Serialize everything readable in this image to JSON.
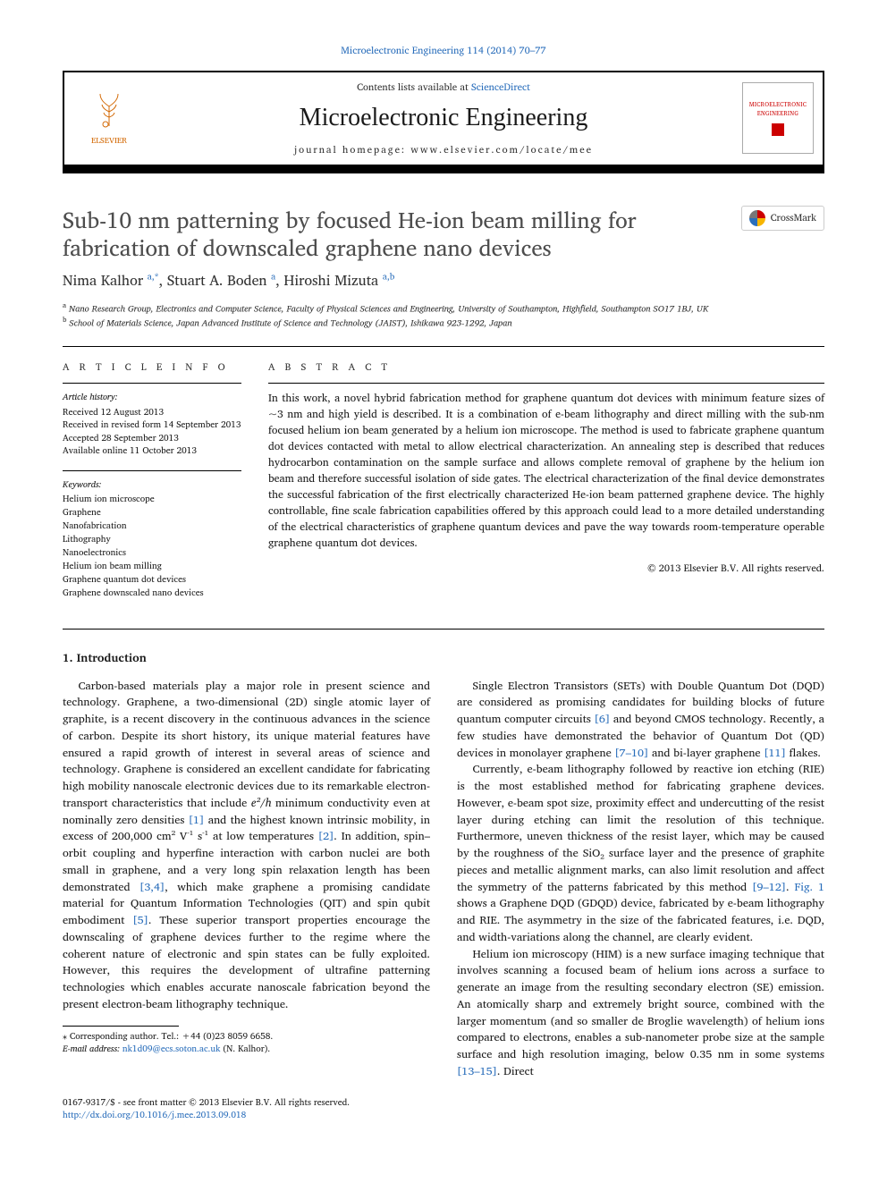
{
  "top_link": {
    "text": "Microelectronic Engineering 114 (2014) 70–77"
  },
  "header": {
    "contents_prefix": "Contents lists available at ",
    "contents_link": "ScienceDirect",
    "journal_name": "Microelectronic Engineering",
    "journal_home_prefix": "journal homepage: ",
    "journal_home_url": "www.elsevier.com/locate/mee",
    "publisher_name": "ELSEVIER",
    "cover_label_1": "MICROELECTRONIC",
    "cover_label_2": "ENGINEERING"
  },
  "crossmark": {
    "label": "CrossMark"
  },
  "article": {
    "title": "Sub-10 nm patterning by focused He-ion beam milling for fabrication of downscaled graphene nano devices",
    "authors_html": "Nima Kalhor <span class='sup'>a,*</span>, Stuart A. Boden <span class='sup'>a</span>, Hiroshi Mizuta <span class='sup'>a,b</span>",
    "affiliations": [
      {
        "sup": "a",
        "text": "Nano Research Group, Electronics and Computer Science, Faculty of Physical Sciences and Engineering, University of Southampton, Highfield, Southampton SO17 1BJ, UK"
      },
      {
        "sup": "b",
        "text": "School of Materials Science, Japan Advanced Institute of Science and Technology (JAIST), Ishikawa 923-1292, Japan"
      }
    ]
  },
  "article_info": {
    "heading": "A R T I C L E   I N F O",
    "history_label": "Article history:",
    "history": [
      "Received 12 August 2013",
      "Received in revised form 14 September 2013",
      "Accepted 28 September 2013",
      "Available online 11 October 2013"
    ],
    "keywords_label": "Keywords:",
    "keywords": [
      "Helium ion microscope",
      "Graphene",
      "Nanofabrication",
      "Lithography",
      "Nanoelectronics",
      "Helium ion beam milling",
      "Graphene quantum dot devices",
      "Graphene downscaled nano devices"
    ]
  },
  "abstract": {
    "heading": "A B S T R A C T",
    "body": "In this work, a novel hybrid fabrication method for graphene quantum dot devices with minimum feature sizes of ~3 nm and high yield is described. It is a combination of e-beam lithography and direct milling with the sub-nm focused helium ion beam generated by a helium ion microscope. The method is used to fabricate graphene quantum dot devices contacted with metal to allow electrical characterization. An annealing step is described that reduces hydrocarbon contamination on the sample surface and allows complete removal of graphene by the helium ion beam and therefore successful isolation of side gates. The electrical characterization of the final device demonstrates the successful fabrication of the first electrically characterized He-ion beam patterned graphene device. The highly controllable, fine scale fabrication capabilities offered by this approach could lead to a more detailed understanding of the electrical characteristics of graphene quantum devices and pave the way towards room-temperature operable graphene quantum dot devices.",
    "copyright": "© 2013 Elsevier B.V. All rights reserved."
  },
  "introduction": {
    "heading": "1. Introduction",
    "p1_pre": "Carbon-based materials play a major role in present science and technology. Graphene, a two-dimensional (2D) single atomic layer of graphite, is a recent discovery in the continuous advances in the science of carbon. Despite its short history, its unique material features have ensured a rapid growth of interest in several areas of science and technology. Graphene is considered an excellent candidate for fabricating high mobility nanoscale electronic devices due to its remarkable electron-transport characteristics that include ",
    "p1_eq": "e²/h",
    "p1_mid1": " minimum conductivity even at nominally zero densities ",
    "p1_ref1": "[1]",
    "p1_mid2": " and the highest known intrinsic mobility, in excess of 200,000 cm² V⁻¹ s⁻¹ at low temperatures ",
    "p1_ref2": "[2]",
    "p1_mid3": ". In addition, spin–orbit coupling and hyperfine interaction with carbon nuclei are both small in graphene, and a very long spin relaxation length has been demonstrated ",
    "p1_ref3": "[3,4]",
    "p1_mid4": ", which make graphene a promising candidate material for Quantum Information Technologies (QIT) and spin qubit embodiment ",
    "p1_ref4": "[5]",
    "p1_post": ". These superior transport properties encourage the downscaling of graphene devices further to the regime where the coherent nature of electronic and spin states can be fully exploited. However, this requires the development of ultrafine patterning technologies which enables accurate nanoscale fabrication beyond the present electron-beam lithography technique.",
    "p2_pre": "Single Electron Transistors (SETs) with Double Quantum Dot (DQD) are considered as promising candidates for building blocks of future quantum computer circuits ",
    "p2_ref1": "[6]",
    "p2_mid1": " and beyond CMOS technology. Recently, a few studies have demonstrated the behavior of Quantum Dot (QD) devices in monolayer graphene ",
    "p2_ref2": "[7–10]",
    "p2_mid2": " and bi-layer graphene ",
    "p2_ref3": "[11]",
    "p2_post": " flakes.",
    "p3_pre": "Currently, e-beam lithography followed by reactive ion etching (RIE) is the most established method for fabricating graphene devices. However, e-beam spot size, proximity effect and undercutting of the resist layer during etching can limit the resolution of this technique. Furthermore, uneven thickness of the resist layer, which may be caused by the roughness of the SiO₂ surface layer and the presence of graphite pieces and metallic alignment marks, can also limit resolution and affect the symmetry of the patterns fabricated by this method ",
    "p3_ref1": "[9–12]",
    "p3_mid1": ". ",
    "p3_fig": "Fig. 1",
    "p3_post": " shows a Graphene DQD (GDQD) device, fabricated by e-beam lithography and RIE. The asymmetry in the size of the fabricated features, i.e. DQD, and width-variations along the channel, are clearly evident.",
    "p4_pre": "Helium ion microscopy (HIM) is a new surface imaging technique that involves scanning a focused beam of helium ions across a surface to generate an image from the resulting secondary electron (SE) emission. An atomically sharp and extremely bright source, combined with the larger momentum (and so smaller de Broglie wavelength) of helium ions compared to electrons, enables a sub-nanometer probe size at the sample surface and high resolution imaging, below 0.35 nm in some systems ",
    "p4_ref1": "[13–15]",
    "p4_post": ". Direct"
  },
  "footnote": {
    "corr_marker": "⁎",
    "corr_text": " Corresponding author. Tel.: +44 (0)23 8059 6658.",
    "email_label": "E-mail address: ",
    "email": "nk1d09@ecs.soton.ac.uk",
    "email_suffix": " (N. Kalhor)."
  },
  "bottom": {
    "issn_line": "0167-9317/$ - see front matter © 2013 Elsevier B.V. All rights reserved.",
    "doi": "http://dx.doi.org/10.1016/j.mee.2013.09.018"
  },
  "colors": {
    "link": "#2a6ebb",
    "title_gray": "#4d4d4d",
    "elsevier_orange": "#d46b08",
    "cover_red": "#cc0000"
  }
}
